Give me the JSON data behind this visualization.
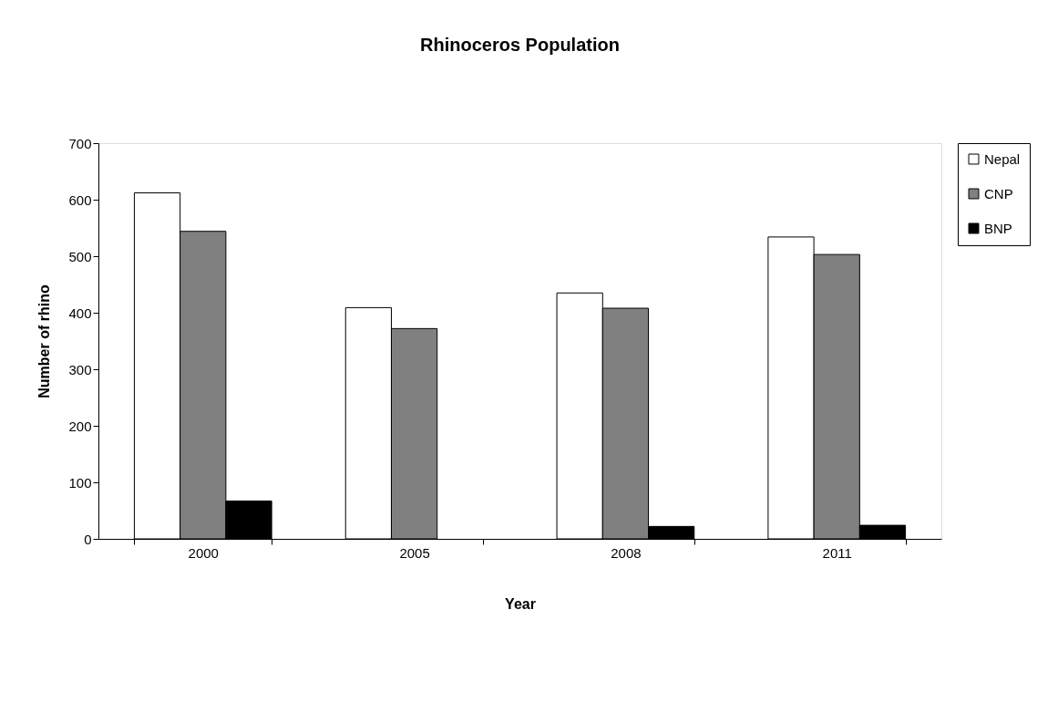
{
  "chart_data": {
    "type": "bar",
    "title": "Rhinoceros Population",
    "xlabel": "Year",
    "ylabel": "Number of rhino",
    "categories": [
      "2000",
      "2005",
      "2008",
      "2011"
    ],
    "series": [
      {
        "name": "Nepal",
        "color": "#ffffff",
        "values": [
          612,
          409,
          435,
          534
        ]
      },
      {
        "name": "CNP",
        "color": "#808080",
        "values": [
          544,
          372,
          408,
          503
        ]
      },
      {
        "name": "BNP",
        "color": "#000000",
        "values": [
          67,
          null,
          22,
          24
        ]
      }
    ],
    "ylim": [
      0,
      700
    ],
    "yticks": [
      0,
      100,
      200,
      300,
      400,
      500,
      600,
      700
    ],
    "grid": false,
    "legend": "right"
  }
}
